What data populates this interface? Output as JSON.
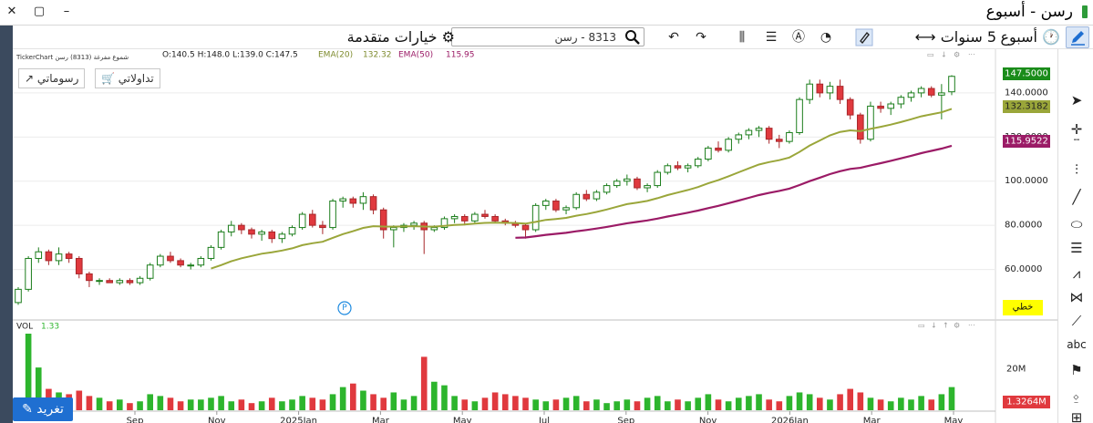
{
  "window": {
    "title": "رسن - أسبوع",
    "minimize": "–",
    "restore": "▢",
    "close": "✕"
  },
  "toolbar": {
    "interval": "أسبوع",
    "range": "5 سنوات",
    "advanced_options": "خيارات متقدمة",
    "search_value": "8313 - رسن"
  },
  "legend": {
    "ohlc": "O:140.5  H:148.0  L:139.0  C:147.5",
    "ema20_label": "EMA(20)",
    "ema20_value": "132.32",
    "ema50_label": "EMA(50)",
    "ema50_value": "115.95",
    "watermark": "TickerChart شموع مفرغة (8313) رسن",
    "ema20_color": "#9aa63a",
    "ema50_color": "#9b1b66"
  },
  "buttons": {
    "my_trades": "تداولاتي",
    "my_drawings": "رسوماتي",
    "tweet": "تغريد"
  },
  "badges": {
    "last_price": "147.5000",
    "ema20": "132.3182",
    "ema50": "115.9522",
    "linear": "خطي",
    "volume": "1.3264M"
  },
  "volume_legend": {
    "label": "VOL",
    "value": "1.33"
  },
  "colors": {
    "up": "#2db52d",
    "down": "#e0393e",
    "accent": "#1f6fd1"
  },
  "chart_data": {
    "type": "candlestick",
    "yticks": [
      60,
      80,
      100,
      120,
      140
    ],
    "ytick_labels": [
      "60.0000",
      "80.0000",
      "100.0000",
      "120.0000",
      "140.0000"
    ],
    "ylim": [
      40,
      154
    ],
    "xtick_labels": [
      "Sep",
      "Nov",
      "2025Jan",
      "Mar",
      "May",
      "Jul",
      "Sep",
      "Nov",
      "2026Jan",
      "Mar",
      "May"
    ],
    "volume_ytick": "20M",
    "candles": [
      [
        45,
        52,
        44,
        51
      ],
      [
        51,
        66,
        50,
        65
      ],
      [
        65,
        70,
        63,
        68
      ],
      [
        68,
        69,
        62,
        64
      ],
      [
        64,
        70,
        62,
        67
      ],
      [
        67,
        68,
        63,
        65
      ],
      [
        65,
        66,
        56,
        58
      ],
      [
        58,
        59,
        52,
        55
      ],
      [
        55,
        56,
        53,
        55
      ],
      [
        55,
        56,
        54,
        54
      ],
      [
        54,
        56,
        53,
        55
      ],
      [
        55,
        56,
        53,
        54
      ],
      [
        54,
        57,
        53,
        56
      ],
      [
        56,
        63,
        55,
        62
      ],
      [
        62,
        67,
        61,
        66
      ],
      [
        66,
        68,
        63,
        64
      ],
      [
        64,
        65,
        61,
        62
      ],
      [
        62,
        63,
        60,
        62
      ],
      [
        62,
        66,
        61,
        65
      ],
      [
        65,
        71,
        64,
        70
      ],
      [
        70,
        78,
        69,
        77
      ],
      [
        77,
        82,
        75,
        80
      ],
      [
        80,
        81,
        76,
        78
      ],
      [
        78,
        79,
        74,
        76
      ],
      [
        76,
        78,
        73,
        77
      ],
      [
        77,
        78,
        72,
        74
      ],
      [
        74,
        77,
        72,
        76
      ],
      [
        76,
        80,
        75,
        79
      ],
      [
        79,
        86,
        78,
        85
      ],
      [
        85,
        87,
        79,
        80
      ],
      [
        80,
        82,
        76,
        79
      ],
      [
        79,
        92,
        78,
        91
      ],
      [
        91,
        93,
        88,
        92
      ],
      [
        92,
        93,
        88,
        90
      ],
      [
        90,
        95,
        87,
        93
      ],
      [
        93,
        94,
        85,
        87
      ],
      [
        87,
        88,
        74,
        78
      ],
      [
        78,
        80,
        70,
        79
      ],
      [
        79,
        81,
        77,
        80
      ],
      [
        80,
        82,
        78,
        81
      ],
      [
        81,
        82,
        67,
        78
      ],
      [
        78,
        80,
        77,
        79
      ],
      [
        79,
        84,
        78,
        83
      ],
      [
        83,
        85,
        81,
        84
      ],
      [
        84,
        85,
        80,
        82
      ],
      [
        82,
        86,
        81,
        85
      ],
      [
        85,
        87,
        83,
        84
      ],
      [
        84,
        85,
        81,
        82
      ],
      [
        82,
        83,
        80,
        81
      ],
      [
        81,
        82,
        79,
        80
      ],
      [
        80,
        81,
        74,
        78
      ],
      [
        78,
        90,
        77,
        89
      ],
      [
        89,
        92,
        87,
        91
      ],
      [
        91,
        92,
        86,
        87
      ],
      [
        87,
        89,
        85,
        88
      ],
      [
        88,
        95,
        87,
        94
      ],
      [
        94,
        96,
        91,
        92
      ],
      [
        92,
        96,
        91,
        95
      ],
      [
        95,
        99,
        94,
        98
      ],
      [
        98,
        101,
        97,
        100
      ],
      [
        100,
        103,
        98,
        101
      ],
      [
        101,
        102,
        96,
        97
      ],
      [
        97,
        99,
        95,
        98
      ],
      [
        98,
        105,
        97,
        104
      ],
      [
        104,
        108,
        103,
        107
      ],
      [
        107,
        109,
        105,
        106
      ],
      [
        106,
        108,
        104,
        107
      ],
      [
        107,
        111,
        106,
        110
      ],
      [
        110,
        116,
        109,
        115
      ],
      [
        115,
        118,
        113,
        114
      ],
      [
        114,
        120,
        113,
        119
      ],
      [
        119,
        122,
        117,
        121
      ],
      [
        121,
        124,
        119,
        123
      ],
      [
        123,
        125,
        120,
        124
      ],
      [
        124,
        125,
        117,
        119
      ],
      [
        119,
        121,
        115,
        118
      ],
      [
        118,
        123,
        117,
        122
      ],
      [
        122,
        138,
        121,
        137
      ],
      [
        137,
        146,
        135,
        144
      ],
      [
        144,
        146,
        138,
        140
      ],
      [
        140,
        145,
        137,
        143
      ],
      [
        143,
        146,
        135,
        137
      ],
      [
        137,
        138,
        128,
        130
      ],
      [
        130,
        131,
        117,
        119
      ],
      [
        119,
        136,
        118,
        134
      ],
      [
        134,
        136,
        131,
        133
      ],
      [
        133,
        136,
        130,
        135
      ],
      [
        135,
        139,
        133,
        138
      ],
      [
        138,
        141,
        136,
        140
      ],
      [
        140,
        143,
        138,
        142
      ],
      [
        142,
        143,
        138,
        139
      ],
      [
        139,
        144,
        128,
        140
      ],
      [
        140.5,
        148,
        139,
        147.5
      ]
    ],
    "volumes": [
      0.6,
      4.3,
      2.4,
      1.2,
      1.0,
      0.9,
      1.1,
      0.8,
      0.7,
      0.5,
      0.6,
      0.4,
      0.5,
      0.9,
      0.8,
      0.7,
      0.5,
      0.6,
      0.6,
      0.7,
      0.8,
      0.5,
      0.6,
      0.4,
      0.5,
      0.7,
      0.5,
      0.6,
      0.8,
      0.7,
      0.6,
      0.9,
      1.3,
      1.5,
      1.1,
      0.9,
      0.7,
      1.0,
      0.6,
      0.8,
      3.0,
      1.6,
      1.4,
      0.8,
      0.6,
      0.5,
      0.7,
      1.0,
      0.9,
      0.8,
      0.7,
      0.6,
      0.5,
      0.6,
      0.7,
      0.8,
      0.5,
      0.6,
      0.4,
      0.5,
      0.6,
      0.5,
      0.7,
      0.8,
      0.5,
      0.6,
      0.5,
      0.7,
      0.9,
      0.6,
      0.5,
      0.7,
      0.8,
      0.9,
      0.6,
      0.5,
      0.8,
      1.0,
      0.9,
      0.7,
      0.6,
      0.9,
      1.2,
      1.0,
      0.7,
      0.6,
      0.5,
      0.7,
      0.6,
      0.8,
      0.6,
      0.9,
      1.3
    ]
  }
}
